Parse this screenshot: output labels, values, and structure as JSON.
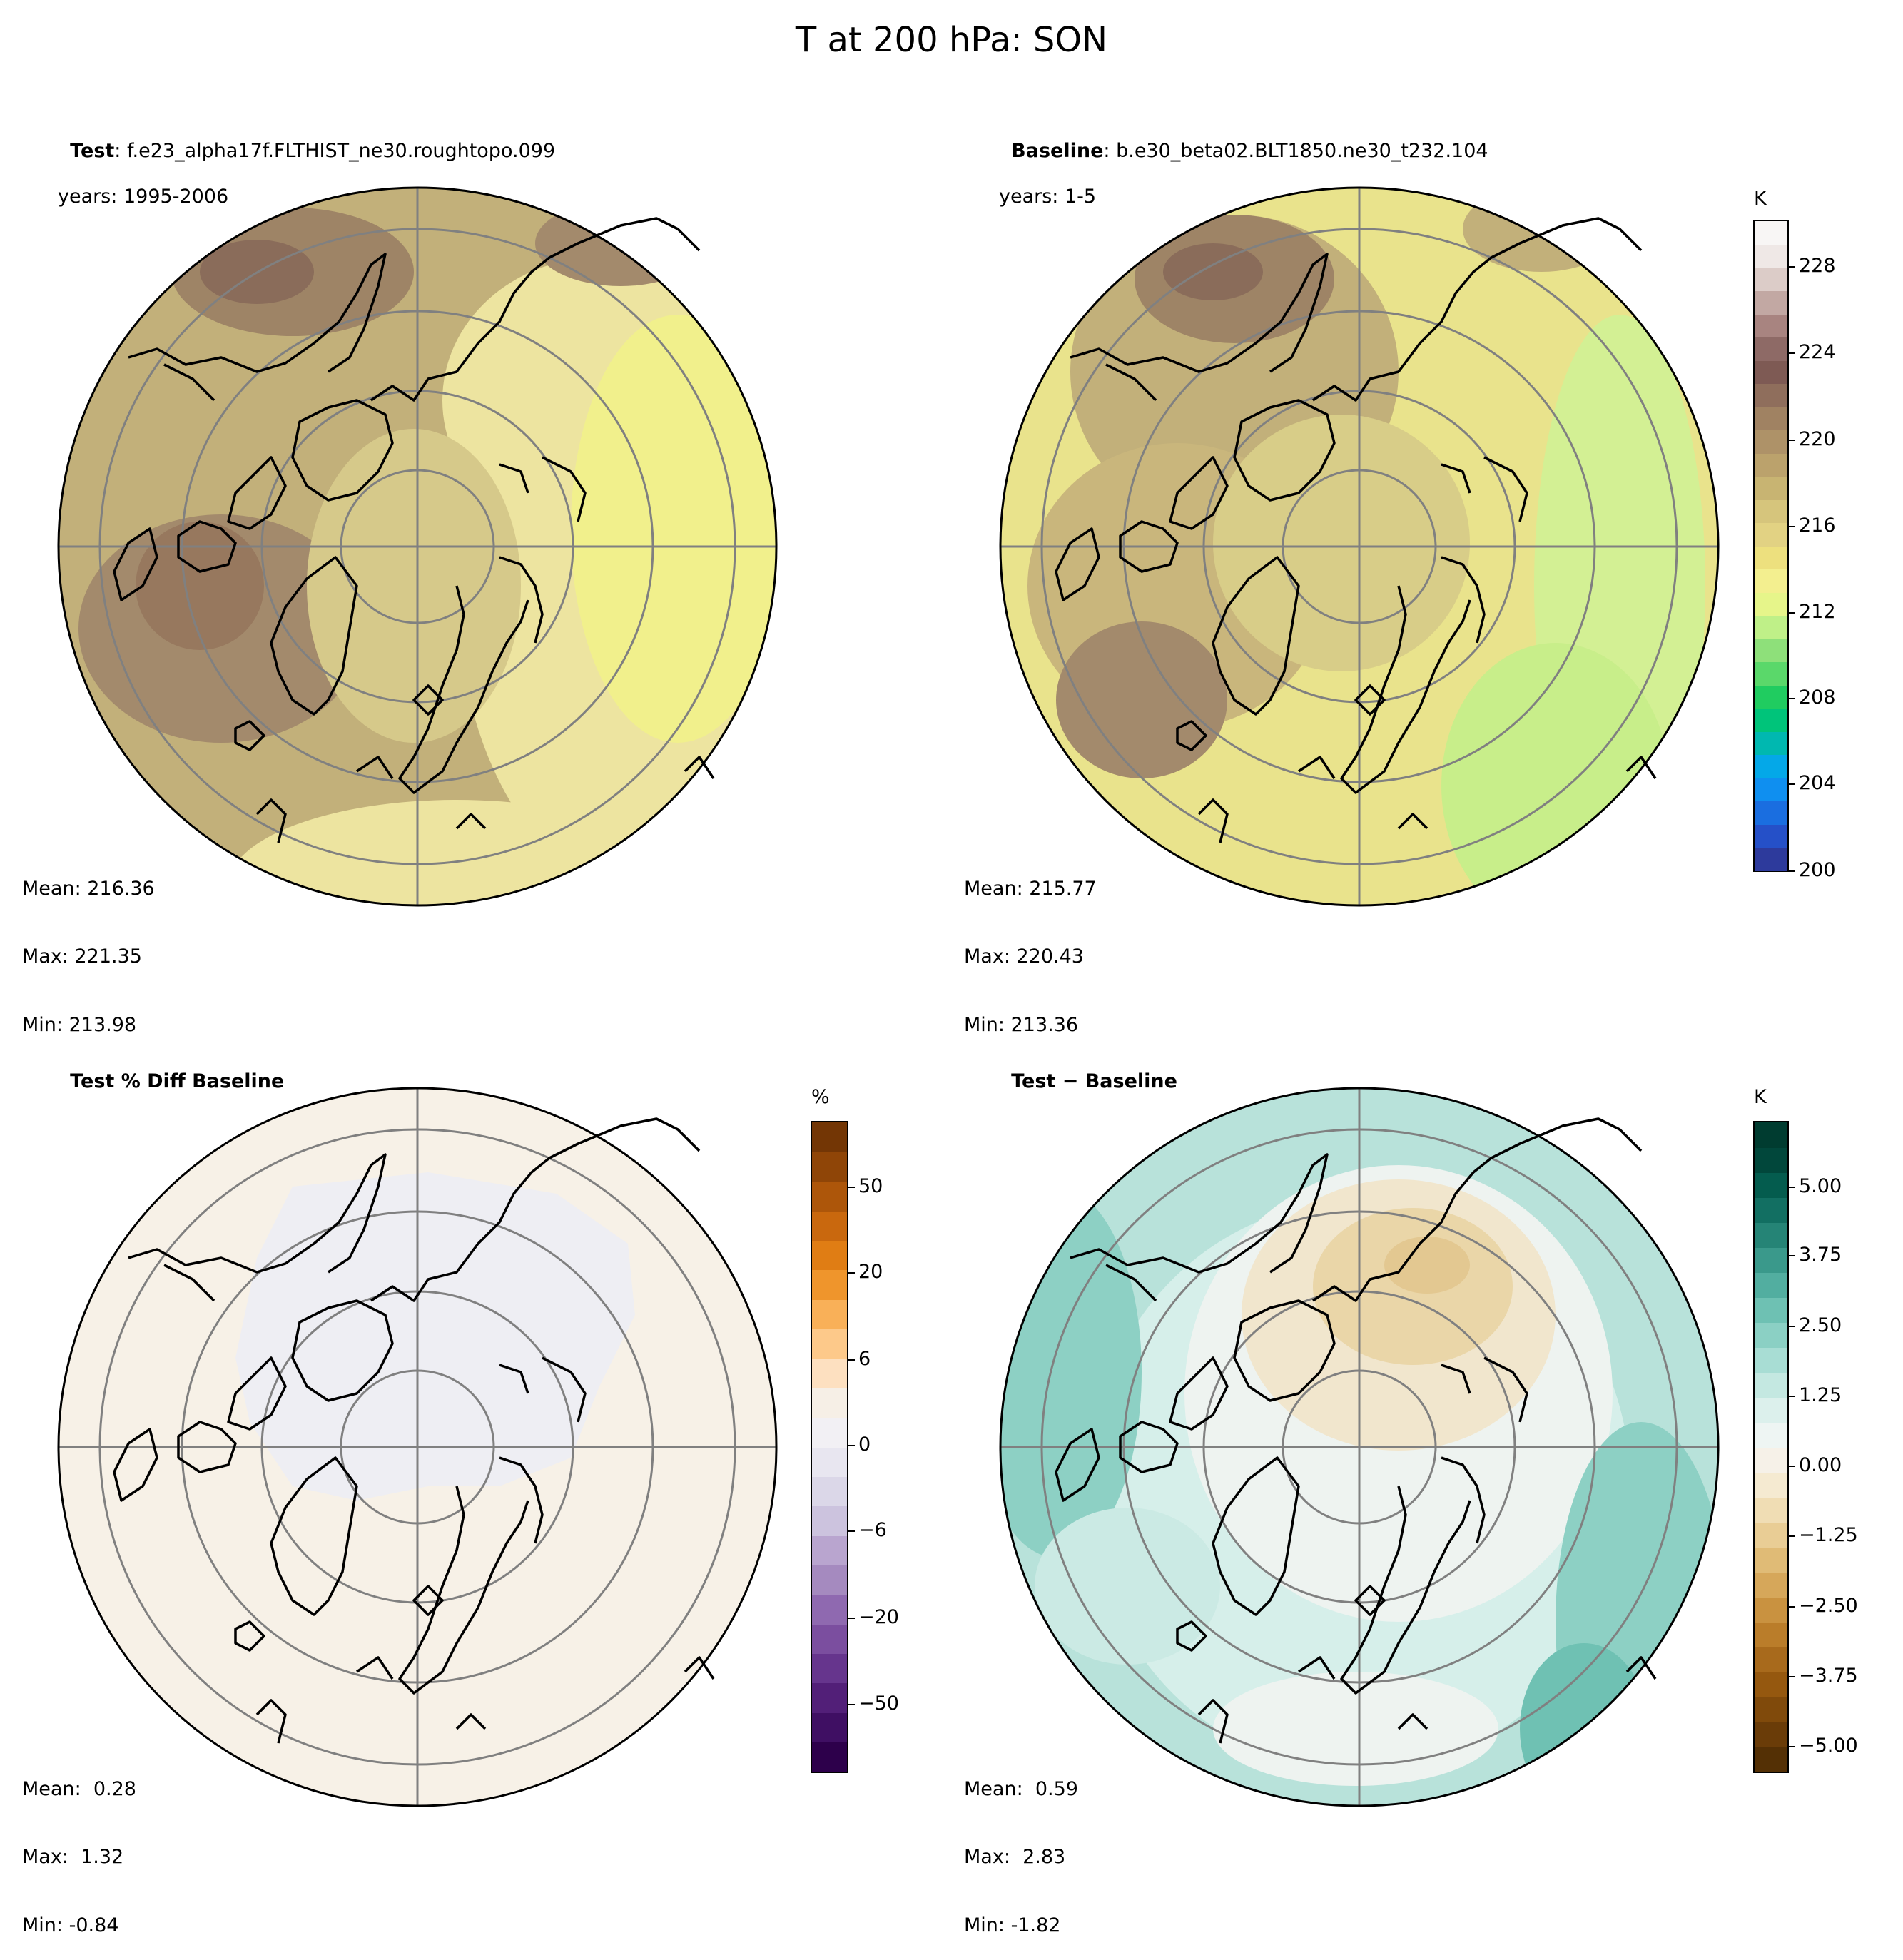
{
  "figure": {
    "title": "T at 200 hPa: SON"
  },
  "panels": [
    {
      "id": "test",
      "label_bold": "Test",
      "label_sep": ": ",
      "case": "f.e23_alpha17f.FLTHIST_ne30.roughtopo.099",
      "years_line": "years: 1995-2006",
      "stats": {
        "mean": "Mean: 216.36",
        "max": "Max: 221.35",
        "min": "Min: 213.98"
      }
    },
    {
      "id": "baseline",
      "label_bold": "Baseline",
      "label_sep": ": ",
      "case": "b.e30_beta02.BLT1850.ne30_t232.104",
      "years_line": "years: 1-5",
      "stats": {
        "mean": "Mean: 215.77",
        "max": "Max: 220.43",
        "min": "Min: 213.36"
      }
    },
    {
      "id": "pctdiff",
      "label_bold": "Test % Diff Baseline",
      "stats": {
        "mean": "Mean:  0.28",
        "max": "Max:  1.32",
        "min": "Min: -0.84"
      }
    },
    {
      "id": "diff",
      "label_bold": "Test − Baseline",
      "stats": {
        "mean": "Mean:  0.59",
        "max": "Max:  2.83",
        "min": "Min: -1.82"
      }
    }
  ],
  "colorbars": {
    "abs": {
      "unit": "K",
      "ticks": [
        "228",
        "224",
        "220",
        "216",
        "212",
        "208",
        "204",
        "200"
      ],
      "colors": [
        "#2d3a9c",
        "#2550c8",
        "#1a6ee0",
        "#0f8ff0",
        "#04a8e8",
        "#00b8b0",
        "#00c47a",
        "#20cc60",
        "#5ad86a",
        "#8ee07a",
        "#bff088",
        "#e6f58a",
        "#f3ef8f",
        "#ede07e",
        "#e2d283",
        "#d6c57c",
        "#c8b472",
        "#bba26c",
        "#ae9268",
        "#a08262",
        "#8f6e5c",
        "#7e5a54",
        "#8e6a66",
        "#a88480",
        "#c2a8a3",
        "#dcccc8",
        "#efe8e6",
        "#f8f6f5"
      ]
    },
    "pct": {
      "unit": "%",
      "ticks": [
        "50",
        "20",
        "6",
        "0",
        "−6",
        "−20",
        "−50"
      ],
      "colors": [
        "#2d004b",
        "#3f0f63",
        "#521f78",
        "#66358d",
        "#7b4e9f",
        "#8f69b0",
        "#a58abf",
        "#b9a5cf",
        "#ccc3de",
        "#dbd7e8",
        "#e8e6f0",
        "#f2f0f4",
        "#f6efe6",
        "#fde0c0",
        "#fdc98a",
        "#f9b058",
        "#ef952c",
        "#e07d14",
        "#c9680e",
        "#ad560a",
        "#8f4507",
        "#733605"
      ]
    },
    "diff": {
      "unit": "K",
      "ticks": [
        "5.00",
        "3.75",
        "2.50",
        "1.25",
        "0.00",
        "−1.25",
        "−2.50",
        "−3.75",
        "−5.00"
      ],
      "colors": [
        "#543005",
        "#6a3c08",
        "#804a0b",
        "#95580f",
        "#a86a1c",
        "#ba7d2a",
        "#c99240",
        "#d6a75a",
        "#e0bb76",
        "#e9cd95",
        "#f0ddb4",
        "#f5ead1",
        "#f6f1e8",
        "#eef5f3",
        "#dcf0ec",
        "#c4e8e1",
        "#a8ddd4",
        "#8bd0c4",
        "#6ec1b3",
        "#52aea0",
        "#3a998b",
        "#258476",
        "#126f62",
        "#045c4e",
        "#01473b",
        "#003c30"
      ]
    }
  }
}
